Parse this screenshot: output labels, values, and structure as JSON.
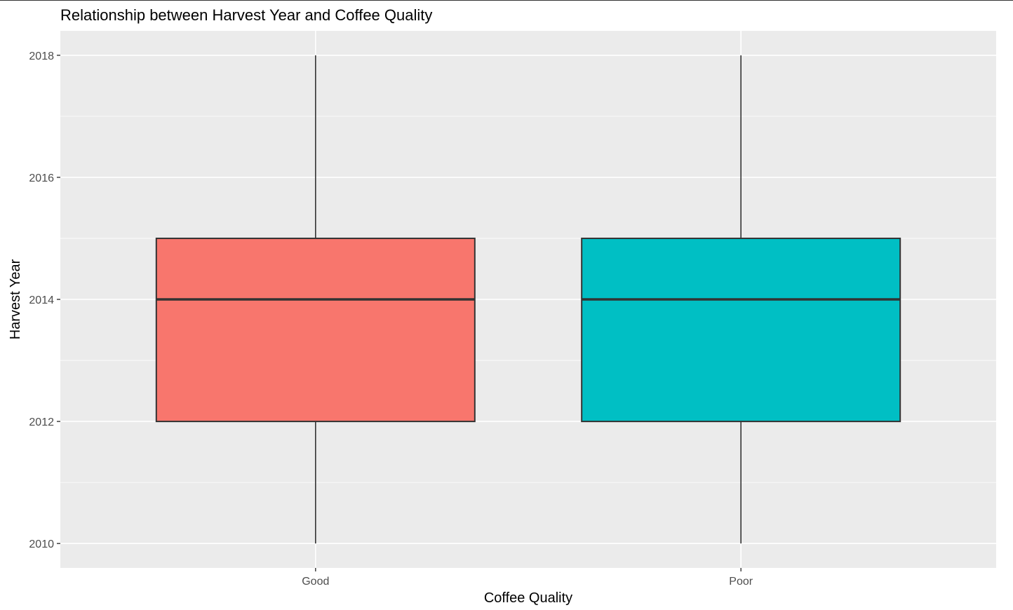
{
  "chart_data": {
    "type": "box",
    "title": "Relationship between Harvest Year and Coffee Quality",
    "xlabel": "Coffee Quality",
    "ylabel": "Harvest Year",
    "categories": [
      "Good",
      "Poor"
    ],
    "boxes": [
      {
        "category": "Good",
        "min": 2010,
        "q1": 2012,
        "median": 2014,
        "q3": 2015,
        "max": 2018,
        "color": "#F8766D"
      },
      {
        "category": "Poor",
        "min": 2010,
        "q1": 2012,
        "median": 2014,
        "q3": 2015,
        "max": 2018,
        "color": "#00BFC4"
      }
    ],
    "ylim": [
      2009.6,
      2018.4
    ],
    "yticks": [
      2010,
      2012,
      2014,
      2016,
      2018
    ],
    "grid": true,
    "legend": "none",
    "colors": {
      "panel_background": "#EBEBEB",
      "grid": "#FFFFFF",
      "box_outline": "#333333",
      "text": "#000000",
      "tick_text": "#4D4D4D"
    }
  }
}
